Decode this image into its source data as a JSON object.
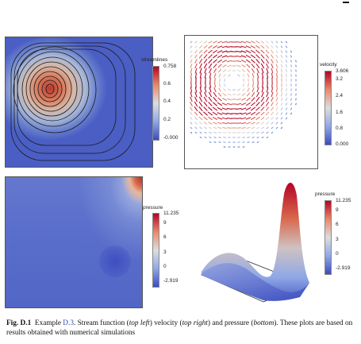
{
  "caption": {
    "fig_label": "Fig. D.1",
    "example_word": "Example",
    "example_ref": "D.3",
    "part1": ". Stream function (",
    "top_left": "top left",
    "part2": ") velocity (",
    "top_right": "top right",
    "part3": ") and pressure (",
    "bottom": "bottom",
    "part4": "). These plots are based on results obtained with numerical simulations"
  },
  "panels": {
    "streamlines": {
      "title": "streamlines",
      "ticks": [
        "0.758",
        "0.6",
        "0.4",
        "0.2",
        "-0.000"
      ]
    },
    "velocity": {
      "title": "velocity",
      "ticks": [
        "3.606",
        "3.2",
        "2.4",
        "1.6",
        "0.8",
        "0.000"
      ]
    },
    "pressure2d": {
      "title": "pressure",
      "ticks": [
        "11.235",
        "9",
        "6",
        "3",
        "0",
        "-2.919"
      ]
    },
    "pressure3d": {
      "title": "pressure",
      "ticks": [
        "11.235",
        "9",
        "6",
        "3",
        "0",
        "-2.919"
      ]
    }
  },
  "colormap": {
    "low": "#3b4cc0",
    "mid": "#dddddd",
    "high": "#b40426"
  }
}
